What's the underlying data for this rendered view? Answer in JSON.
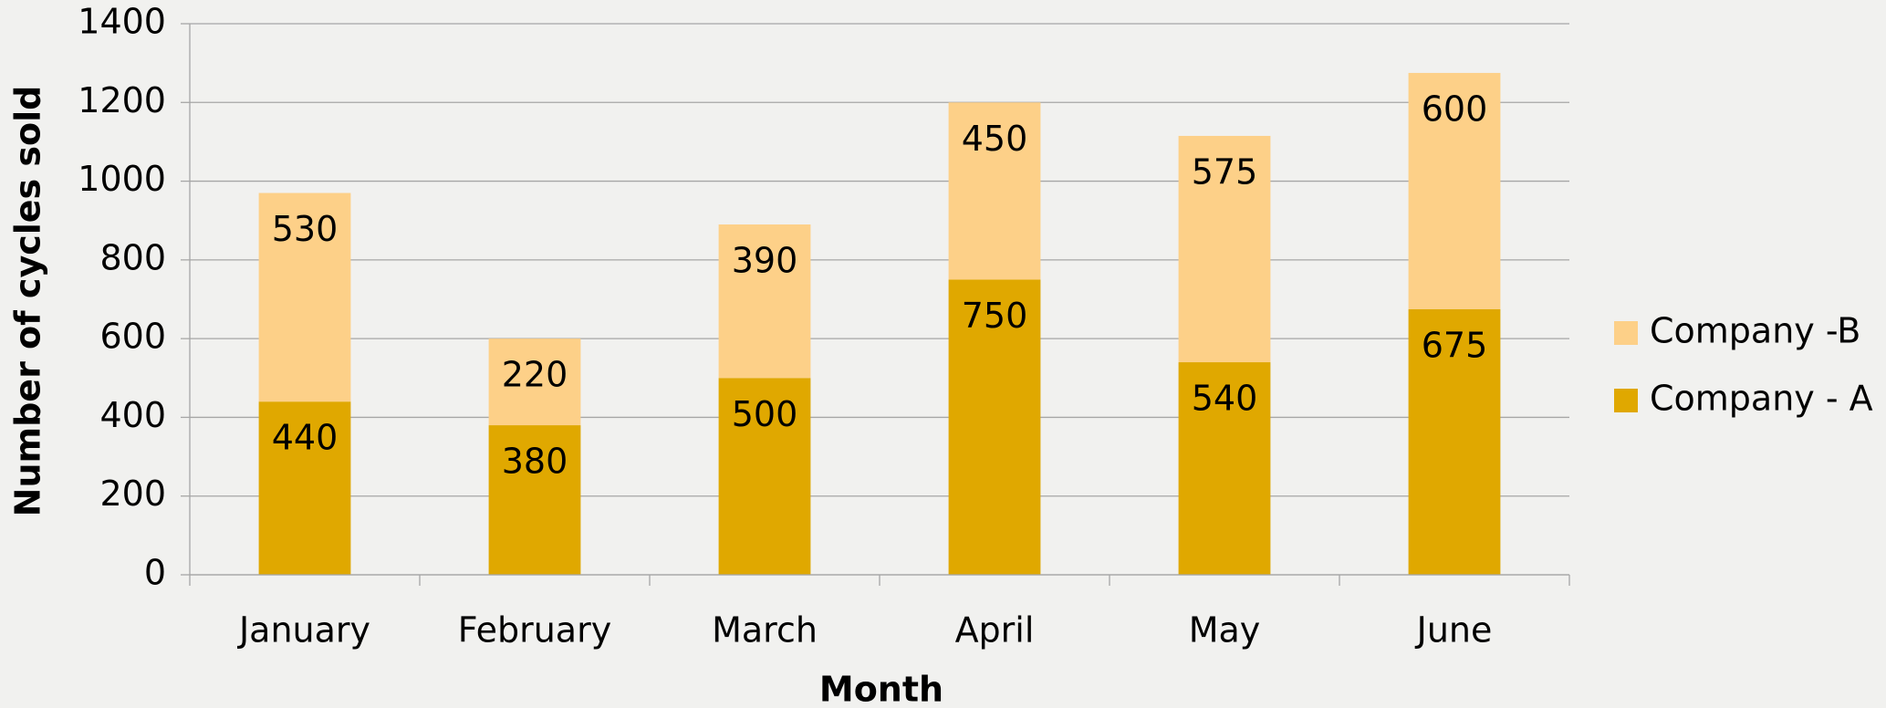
{
  "chart_data": {
    "type": "stacked_bar",
    "x_label": "Month",
    "y_label": "Number of cycles sold",
    "categories": [
      "January",
      "February",
      "March",
      "April",
      "May",
      "June"
    ],
    "series": [
      {
        "name": "Company - A",
        "color": "#e0a800",
        "values": [
          440,
          380,
          500,
          750,
          540,
          675
        ]
      },
      {
        "name": "Company -B",
        "color": "#fdd088",
        "values": [
          530,
          220,
          390,
          450,
          575,
          600
        ]
      }
    ],
    "ylim": [
      0,
      1400
    ],
    "yticks": [
      0,
      200,
      400,
      600,
      800,
      1000,
      1200,
      1400
    ],
    "grid": true,
    "legend": "right"
  }
}
